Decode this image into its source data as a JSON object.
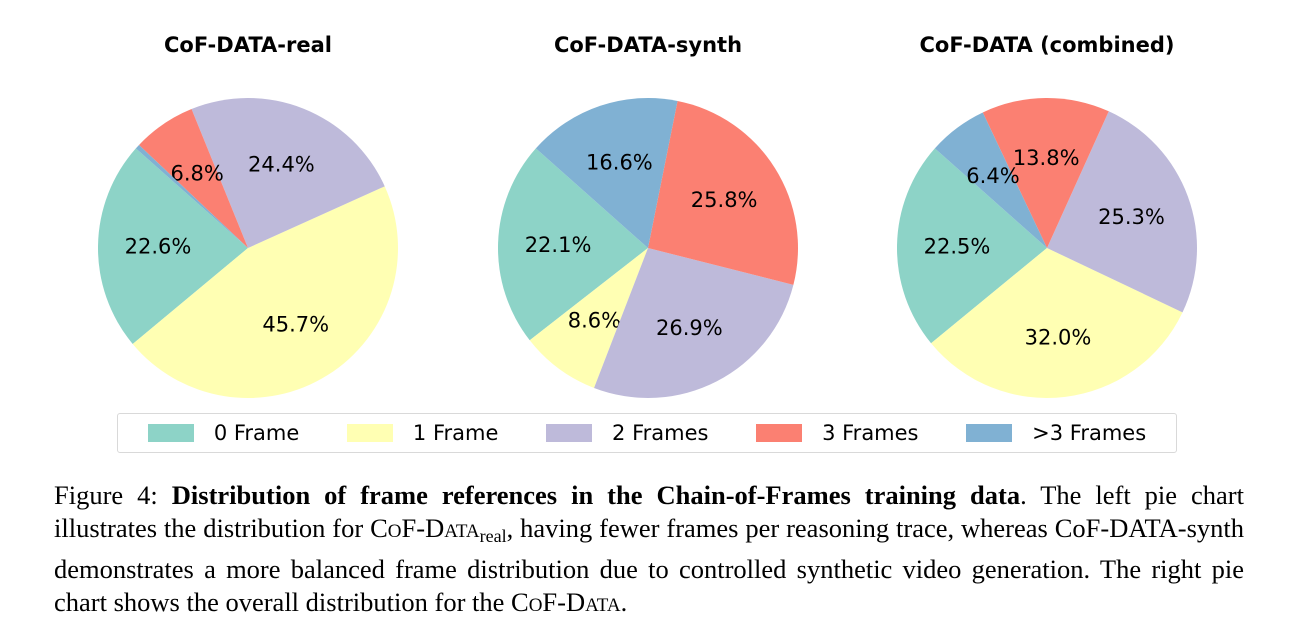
{
  "colors": {
    "0 Frame": "#8dd3c7",
    "1 Frame": "#ffffb3",
    "2 Frames": "#bebada",
    "3 Frames": "#fb8072",
    ">3 Frames": "#80b1d3"
  },
  "chart_data": [
    {
      "type": "pie",
      "title": "CoF-DATA-real",
      "categories": [
        "0 Frame",
        "1 Frame",
        "2 Frames",
        "3 Frames",
        ">3 Frames"
      ],
      "values": [
        22.6,
        45.7,
        24.4,
        6.8,
        0.5
      ],
      "labels": [
        "22.6%",
        "45.7%",
        "24.4%",
        "6.8%",
        ""
      ]
    },
    {
      "type": "pie",
      "title": "CoF-DATA-synth",
      "categories": [
        "0 Frame",
        "1 Frame",
        "2 Frames",
        "3 Frames",
        ">3 Frames"
      ],
      "values": [
        22.1,
        8.6,
        26.9,
        25.8,
        16.6
      ],
      "labels": [
        "22.1%",
        "8.6%",
        "26.9%",
        "25.8%",
        "16.6%"
      ]
    },
    {
      "type": "pie",
      "title": "CoF-DATA (combined)",
      "categories": [
        "0 Frame",
        "1 Frame",
        "2 Frames",
        "3 Frames",
        ">3 Frames"
      ],
      "values": [
        22.5,
        32.0,
        25.3,
        13.8,
        6.4
      ],
      "labels": [
        "22.5%",
        "32.0%",
        "25.3%",
        "13.8%",
        "6.4%"
      ]
    }
  ],
  "legend": {
    "items": [
      "0 Frame",
      "1 Frame",
      "2 Frames",
      "3 Frames",
      ">3 Frames"
    ],
    "placement": "bottom-center"
  },
  "caption": {
    "prefix": "Figure 4: ",
    "bold": "Distribution of frame references in the Chain-of-Frames training data",
    "part1": ". The left pie chart illustrates the distribution for ",
    "sc1": "CoF-Data",
    "sub1": "real",
    "part2": ", having fewer frames per reasoning trace, whereas CoF-DATA-synth demonstrates a more balanced frame distribution due to controlled synthetic video generation. The right pie chart shows the overall distribution for the ",
    "sc2": "CoF-Data",
    "end": "."
  }
}
